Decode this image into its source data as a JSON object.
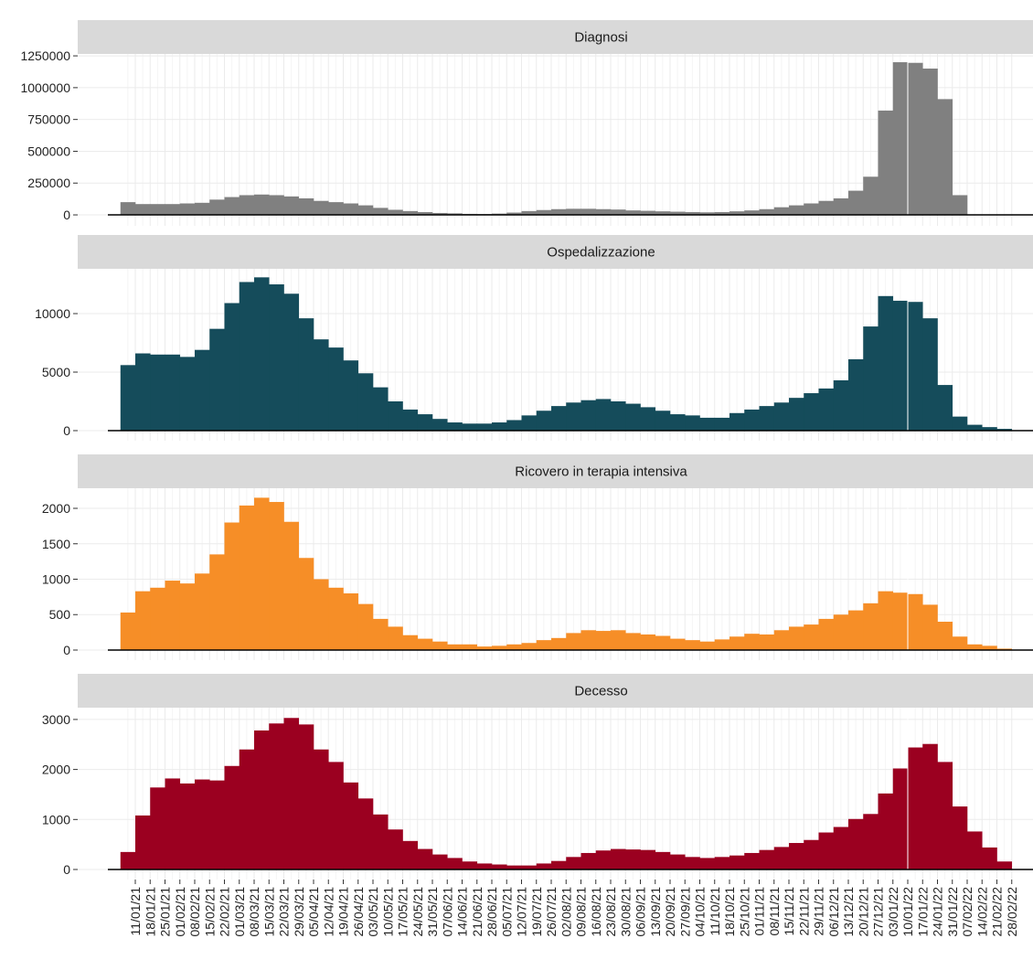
{
  "chart_data": [
    {
      "type": "bar",
      "title": "Diagnosi",
      "color": "#808080",
      "vline": "10/01/22",
      "ylim": [
        -86000,
        1265000
      ],
      "yticks": [
        0,
        250000,
        500000,
        750000,
        1000000,
        1250000
      ],
      "values": [
        100000,
        85000,
        85000,
        85000,
        90000,
        95000,
        120000,
        140000,
        155000,
        160000,
        155000,
        145000,
        130000,
        110000,
        100000,
        90000,
        75000,
        55000,
        40000,
        30000,
        22000,
        15000,
        12000,
        8000,
        7000,
        10000,
        18000,
        30000,
        38000,
        45000,
        48000,
        48000,
        45000,
        42000,
        35000,
        32000,
        28000,
        25000,
        22000,
        20000,
        22000,
        28000,
        35000,
        45000,
        60000,
        75000,
        90000,
        110000,
        130000,
        190000,
        300000,
        820000,
        1200000,
        1195000,
        1150000,
        910000,
        155000,
        null,
        null,
        null
      ]
    },
    {
      "type": "bar",
      "title": "Ospedalizzazione",
      "color": "#154c5b",
      "vline": "10/01/22",
      "ylim": [
        -860,
        13830
      ],
      "yticks": [
        0,
        5000,
        10000
      ],
      "values": [
        5600,
        6600,
        6500,
        6500,
        6300,
        6900,
        8700,
        10900,
        12700,
        13100,
        12500,
        11700,
        9600,
        7800,
        7100,
        6000,
        4900,
        3700,
        2500,
        1800,
        1400,
        1000,
        700,
        600,
        600,
        700,
        900,
        1300,
        1700,
        2100,
        2400,
        2600,
        2700,
        2500,
        2300,
        2000,
        1700,
        1400,
        1300,
        1100,
        1100,
        1500,
        1800,
        2100,
        2400,
        2800,
        3200,
        3600,
        4300,
        6100,
        8900,
        11500,
        11100,
        11000,
        9600,
        3900,
        1200,
        500,
        300,
        150
      ]
    },
    {
      "type": "bar",
      "title": "Ricovero in terapia intensiva",
      "color": "#f68e27",
      "vline": "10/01/22",
      "ylim": [
        -142,
        2284
      ],
      "yticks": [
        0,
        500,
        1000,
        1500,
        2000
      ],
      "values": [
        530,
        830,
        880,
        980,
        940,
        1080,
        1350,
        1800,
        2040,
        2150,
        2090,
        1810,
        1300,
        1000,
        880,
        800,
        650,
        440,
        330,
        210,
        160,
        120,
        80,
        80,
        50,
        60,
        80,
        100,
        140,
        170,
        240,
        280,
        270,
        280,
        240,
        220,
        200,
        160,
        140,
        120,
        150,
        190,
        230,
        220,
        280,
        330,
        360,
        440,
        500,
        560,
        660,
        830,
        810,
        790,
        640,
        400,
        190,
        80,
        60,
        20
      ]
    },
    {
      "type": "bar",
      "title": "Decesso",
      "color": "#9b0020",
      "vline": "10/01/22",
      "ylim": [
        -201,
        3236
      ],
      "yticks": [
        0,
        1000,
        2000,
        3000
      ],
      "values": [
        350,
        1080,
        1640,
        1820,
        1720,
        1800,
        1780,
        2070,
        2400,
        2780,
        2920,
        3030,
        2900,
        2400,
        2150,
        1740,
        1420,
        1100,
        800,
        570,
        410,
        300,
        230,
        160,
        120,
        100,
        80,
        80,
        120,
        170,
        250,
        330,
        380,
        410,
        400,
        390,
        350,
        300,
        250,
        230,
        250,
        280,
        330,
        390,
        450,
        530,
        590,
        740,
        850,
        1010,
        1110,
        1520,
        2020,
        2440,
        2510,
        2150,
        1260,
        760,
        440,
        160
      ],
      "categories": [
        "11/01/21",
        "18/01/21",
        "25/01/21",
        "01/02/21",
        "08/02/21",
        "15/02/21",
        "22/02/21",
        "01/03/21",
        "08/03/21",
        "15/03/21",
        "22/03/21",
        "29/03/21",
        "05/04/21",
        "12/04/21",
        "19/04/21",
        "26/04/21",
        "03/05/21",
        "10/05/21",
        "17/05/21",
        "24/05/21",
        "31/05/21",
        "07/06/21",
        "14/06/21",
        "21/06/21",
        "28/06/21",
        "05/07/21",
        "12/07/21",
        "19/07/21",
        "26/07/21",
        "02/08/21",
        "09/08/21",
        "16/08/21",
        "23/08/21",
        "30/08/21",
        "06/09/21",
        "13/09/21",
        "20/09/21",
        "27/09/21",
        "04/10/21",
        "11/10/21",
        "18/10/21",
        "25/10/21",
        "01/11/21",
        "08/11/21",
        "15/11/21",
        "22/11/21",
        "29/11/21",
        "06/12/21",
        "13/12/21",
        "20/12/21",
        "27/12/21",
        "03/01/22",
        "10/01/22",
        "17/01/22",
        "24/01/22",
        "31/01/22",
        "07/02/22",
        "14/02/22",
        "21/02/22",
        "28/02/22"
      ]
    }
  ]
}
